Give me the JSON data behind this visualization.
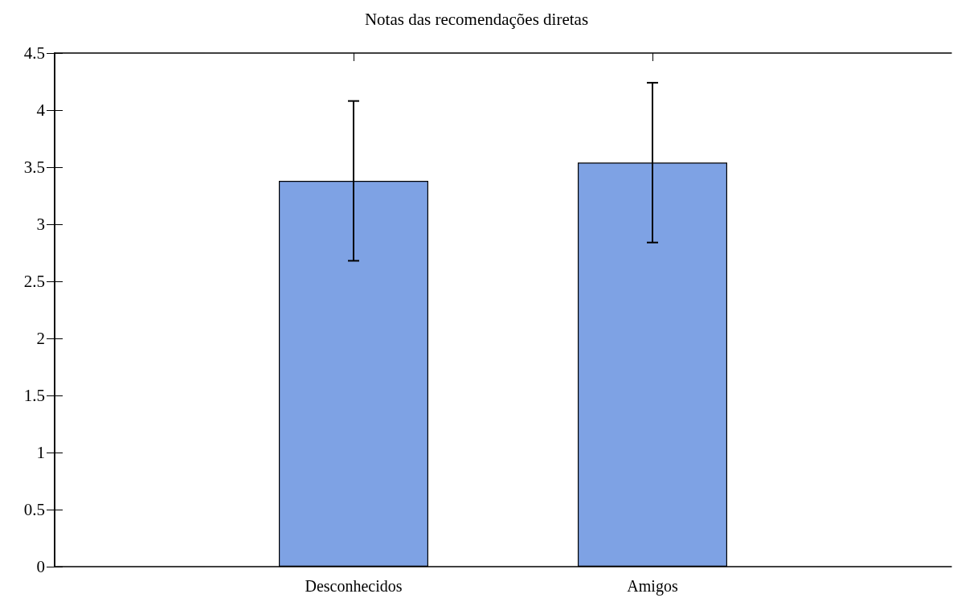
{
  "chart_data": {
    "type": "bar",
    "title": "Notas das recomendações diretas",
    "categories": [
      "Desconhecidos",
      "Amigos"
    ],
    "values": [
      3.38,
      3.54
    ],
    "errors": [
      0.7,
      0.7
    ],
    "color": "#7ea2e4",
    "ylim": [
      0,
      4.5
    ],
    "yticks": [
      0,
      0.5,
      1,
      1.5,
      2,
      2.5,
      3,
      3.5,
      4,
      4.5
    ],
    "grid": false
  }
}
